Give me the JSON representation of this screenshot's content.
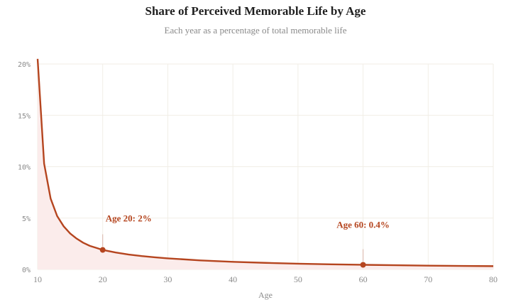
{
  "chart_data": {
    "type": "area",
    "title": "Share of Perceived Memorable Life by Age",
    "subtitle": "Each year as a percentage of total memorable life",
    "xlabel": "Age",
    "ylabel": "",
    "xlim": [
      10,
      80
    ],
    "ylim": [
      0,
      20
    ],
    "grid": true,
    "x_ticks": [
      10,
      20,
      30,
      40,
      50,
      60,
      70,
      80
    ],
    "y_ticks": [
      0,
      5,
      10,
      15,
      20
    ],
    "y_tick_labels": [
      "0%",
      "5%",
      "10%",
      "15%",
      "20%"
    ],
    "series": [
      {
        "x": [
          10,
          11,
          12,
          13,
          14,
          15,
          16,
          17,
          18,
          19,
          20,
          22,
          24,
          26,
          28,
          30,
          35,
          40,
          45,
          50,
          55,
          60,
          65,
          70,
          75,
          80
        ],
        "y": [
          20.5,
          10.3,
          6.9,
          5.2,
          4.2,
          3.5,
          3.0,
          2.6,
          2.3,
          2.1,
          1.9,
          1.65,
          1.45,
          1.3,
          1.18,
          1.08,
          0.88,
          0.74,
          0.64,
          0.56,
          0.5,
          0.45,
          0.41,
          0.37,
          0.34,
          0.32
        ]
      }
    ],
    "annotations": [
      {
        "x": 20,
        "y": 1.9,
        "label": "Age 20: 2%"
      },
      {
        "x": 60,
        "y": 0.45,
        "label": "Age 60: 0.4%"
      }
    ],
    "colors": {
      "line": "#b5451f",
      "fill": "#fbeceb",
      "grid": "#f1eee6",
      "axis": "#cfcfcf"
    }
  }
}
